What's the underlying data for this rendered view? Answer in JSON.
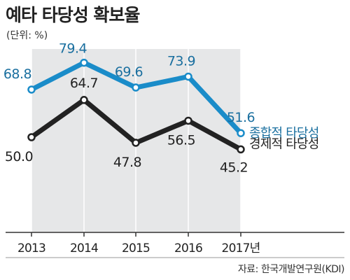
{
  "header": {
    "title": "예타 타당성 확보율",
    "unit": "(단위: %)"
  },
  "footer": {
    "source": "자료: 한국개발연구원(KDI)"
  },
  "chart_data": {
    "type": "line",
    "categories": [
      "2013",
      "2014",
      "2015",
      "2016",
      "2017년"
    ],
    "series": [
      {
        "name": "종합적 타당성",
        "values": [
          68.8,
          79.4,
          69.6,
          73.9,
          51.6
        ],
        "color": "#1a8cc9"
      },
      {
        "name": "경제적 타당성",
        "values": [
          50.0,
          64.7,
          47.8,
          56.5,
          45.2
        ],
        "color": "#222222"
      }
    ],
    "value_labels": [
      [
        "68.8",
        "79.4",
        "69.6",
        "73.9",
        "51.6"
      ],
      [
        "50.0",
        "64.7",
        "47.8",
        "56.5",
        "45.2"
      ]
    ],
    "legend_placement": "right-end",
    "grid": "vertical-only",
    "area_fill_color": "#e6e7e8"
  }
}
